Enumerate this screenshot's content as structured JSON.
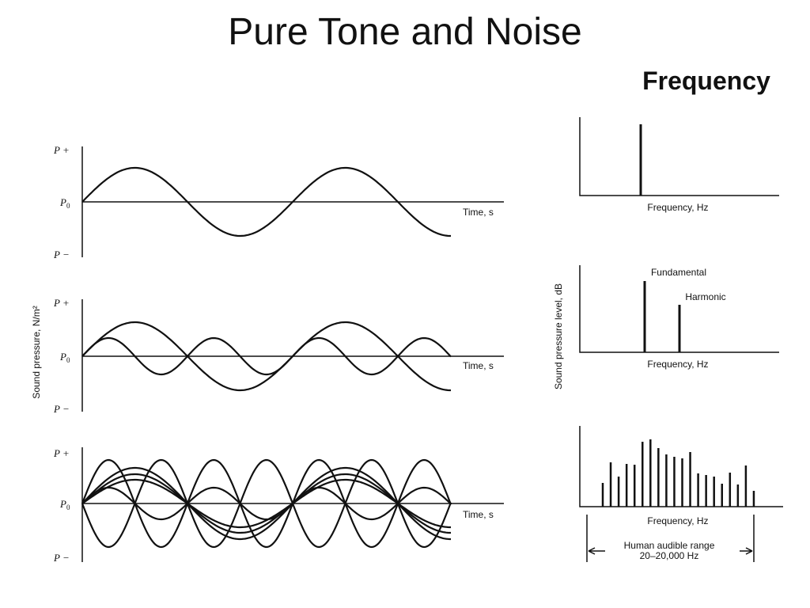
{
  "header": {
    "title": "Pure Tone and Noise",
    "subtitle": "Frequency"
  },
  "time_panels": [
    {
      "p_plus": "P +",
      "p_zero": {
        "symbol": "P",
        "subscript": "0"
      },
      "p_minus": "P −",
      "axis_label": "Time, s"
    },
    {
      "p_plus": "P +",
      "p_zero": {
        "symbol": "P",
        "subscript": "0"
      },
      "p_minus": "P −",
      "axis_label": "Time, s"
    },
    {
      "p_plus": "P +",
      "p_zero": {
        "symbol": "P",
        "subscript": "0"
      },
      "p_minus": "P −",
      "axis_label": "Time, s"
    }
  ],
  "time_y_label": "Sound pressure, N/m²",
  "frequency_panels": [
    {
      "axis_label": "Frequency, Hz"
    },
    {
      "axis_label": "Frequency, Hz",
      "annotations": [
        "Fundamental",
        "Harmonic"
      ]
    },
    {
      "axis_label": "Frequency, Hz",
      "range_label": [
        "Human audible range",
        "20–20,000 Hz"
      ]
    }
  ],
  "frequency_y_label": "Sound pressure level, dB"
}
